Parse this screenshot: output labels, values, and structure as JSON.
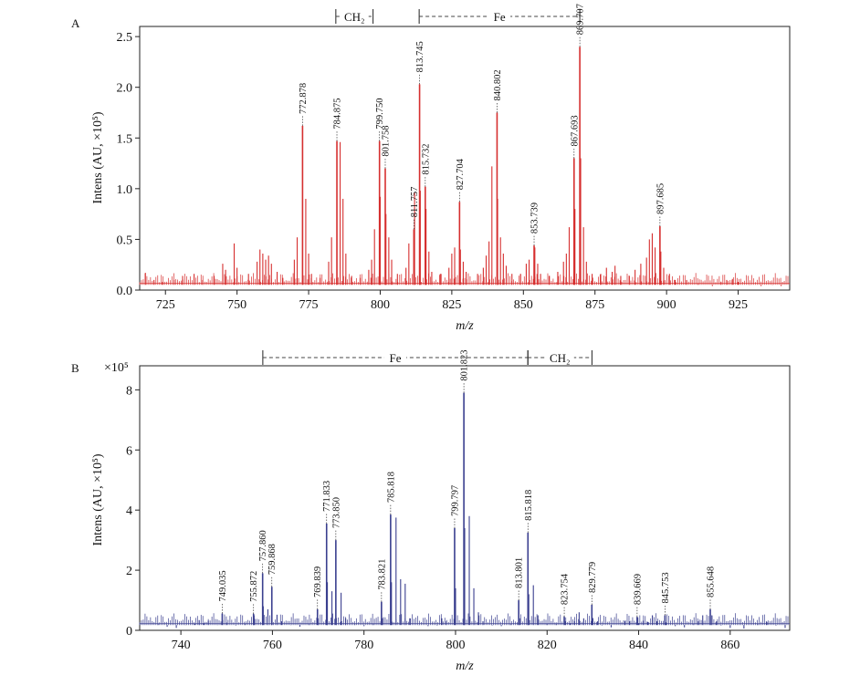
{
  "chart_data": [
    {
      "panel": "A",
      "type": "line",
      "color": "#d62f2f",
      "xlabel": "m/z",
      "ylabel": "Intens (AU, ×10⁵)",
      "xlim": [
        716,
        943
      ],
      "ylim": [
        0,
        2.6
      ],
      "xticks": [
        725,
        750,
        775,
        800,
        825,
        850,
        875,
        900,
        925
      ],
      "yticks": [
        0.0,
        0.5,
        1.0,
        1.5,
        2.0,
        2.5
      ],
      "ytick_labels": [
        "0.0",
        "0.5",
        "1.0",
        "1.5",
        "2.0",
        "2.5"
      ],
      "peaks": [
        {
          "x": 772.878,
          "y": 1.62,
          "label": "772.878"
        },
        {
          "x": 784.875,
          "y": 1.47,
          "label": "784.875"
        },
        {
          "x": 799.75,
          "y": 1.47,
          "label": "799.750"
        },
        {
          "x": 801.758,
          "y": 1.2,
          "label": "801.758"
        },
        {
          "x": 811.757,
          "y": 0.6,
          "label": "811.757"
        },
        {
          "x": 813.745,
          "y": 2.03,
          "label": "813.745"
        },
        {
          "x": 815.732,
          "y": 1.02,
          "label": "815.732"
        },
        {
          "x": 827.704,
          "y": 0.87,
          "label": "827.704"
        },
        {
          "x": 840.802,
          "y": 1.75,
          "label": "840.802"
        },
        {
          "x": 853.739,
          "y": 0.44,
          "label": "853.739"
        },
        {
          "x": 867.693,
          "y": 1.3,
          "label": "867.693"
        },
        {
          "x": 869.707,
          "y": 2.4,
          "label": "869.707"
        },
        {
          "x": 897.685,
          "y": 0.63,
          "label": "897.685"
        }
      ],
      "minor_peaks": [
        [
          718,
          0.17
        ],
        [
          721,
          0.1
        ],
        [
          724,
          0.08
        ],
        [
          728,
          0.1
        ],
        [
          731,
          0.14
        ],
        [
          735,
          0.16
        ],
        [
          738,
          0.1
        ],
        [
          742,
          0.14
        ],
        [
          745,
          0.26
        ],
        [
          746,
          0.2
        ],
        [
          749,
          0.46
        ],
        [
          750,
          0.22
        ],
        [
          754,
          0.16
        ],
        [
          757,
          0.28
        ],
        [
          758,
          0.4
        ],
        [
          759,
          0.36
        ],
        [
          760,
          0.3
        ],
        [
          761,
          0.34
        ],
        [
          762,
          0.26
        ],
        [
          764,
          0.18
        ],
        [
          766,
          0.12
        ],
        [
          770,
          0.3
        ],
        [
          771,
          0.52
        ],
        [
          774,
          0.9
        ],
        [
          775,
          0.36
        ],
        [
          776,
          0.16
        ],
        [
          779,
          0.12
        ],
        [
          782,
          0.28
        ],
        [
          783,
          0.52
        ],
        [
          786,
          1.46
        ],
        [
          787,
          0.9
        ],
        [
          788,
          0.36
        ],
        [
          790,
          0.14
        ],
        [
          793,
          0.12
        ],
        [
          796,
          0.2
        ],
        [
          797,
          0.3
        ],
        [
          798,
          0.6
        ],
        [
          800,
          0.92
        ],
        [
          802,
          0.75
        ],
        [
          803,
          0.52
        ],
        [
          804,
          0.3
        ],
        [
          806,
          0.16
        ],
        [
          809,
          0.22
        ],
        [
          810,
          0.46
        ],
        [
          812,
          0.96
        ],
        [
          814,
          0.98
        ],
        [
          816,
          0.8
        ],
        [
          817,
          0.38
        ],
        [
          818,
          0.18
        ],
        [
          821,
          0.16
        ],
        [
          824,
          0.22
        ],
        [
          825,
          0.36
        ],
        [
          826,
          0.42
        ],
        [
          828,
          0.4
        ],
        [
          829,
          0.28
        ],
        [
          830,
          0.18
        ],
        [
          834,
          0.16
        ],
        [
          836,
          0.22
        ],
        [
          837,
          0.34
        ],
        [
          838,
          0.48
        ],
        [
          839,
          1.22
        ],
        [
          841,
          0.9
        ],
        [
          842,
          0.52
        ],
        [
          843,
          0.36
        ],
        [
          844,
          0.24
        ],
        [
          846,
          0.16
        ],
        [
          849,
          0.16
        ],
        [
          851,
          0.26
        ],
        [
          852,
          0.3
        ],
        [
          854,
          0.42
        ],
        [
          855,
          0.26
        ],
        [
          856,
          0.16
        ],
        [
          859,
          0.14
        ],
        [
          862,
          0.18
        ],
        [
          864,
          0.28
        ],
        [
          865,
          0.36
        ],
        [
          866,
          0.62
        ],
        [
          868,
          0.8
        ],
        [
          870,
          1.3
        ],
        [
          871,
          0.62
        ],
        [
          872,
          0.28
        ],
        [
          874,
          0.16
        ],
        [
          877,
          0.16
        ],
        [
          879,
          0.22
        ],
        [
          881,
          0.18
        ],
        [
          882,
          0.24
        ],
        [
          884,
          0.14
        ],
        [
          887,
          0.14
        ],
        [
          889,
          0.2
        ],
        [
          891,
          0.26
        ],
        [
          893,
          0.32
        ],
        [
          894,
          0.5
        ],
        [
          895,
          0.56
        ],
        [
          896,
          0.42
        ],
        [
          898,
          0.38
        ],
        [
          899,
          0.22
        ],
        [
          901,
          0.16
        ],
        [
          903,
          0.1
        ],
        [
          907,
          0.1
        ],
        [
          911,
          0.06
        ],
        [
          916,
          0.04
        ],
        [
          919,
          0.08
        ],
        [
          921,
          0.1
        ],
        [
          923,
          0.11
        ],
        [
          925,
          0.08
        ],
        [
          929,
          0.05
        ],
        [
          933,
          0.04
        ],
        [
          937,
          0.05
        ],
        [
          940,
          0.04
        ]
      ],
      "annotations": [
        {
          "label": "CH₂",
          "from": 784.5,
          "to": 797.5
        },
        {
          "label": "Fe",
          "from": 813.6,
          "to": 869.7
        }
      ]
    },
    {
      "panel": "B",
      "type": "line",
      "color": "#3a3f8f",
      "xlabel": "m/z",
      "ylabel": "Intens (AU, ×10⁵)",
      "scale_label": "×10⁵",
      "xlim": [
        731,
        873
      ],
      "ylim": [
        0,
        8.8
      ],
      "xticks": [
        740,
        760,
        780,
        800,
        820,
        840,
        860
      ],
      "yticks": [
        0,
        2,
        4,
        6,
        8
      ],
      "ytick_labels": [
        "0",
        "2",
        "4",
        "6",
        "8"
      ],
      "peaks": [
        {
          "x": 749.035,
          "y": 0.56,
          "label": "749.035"
        },
        {
          "x": 755.872,
          "y": 0.55,
          "label": "755.872"
        },
        {
          "x": 757.86,
          "y": 1.9,
          "label": "757.860"
        },
        {
          "x": 759.868,
          "y": 1.45,
          "label": "759.868"
        },
        {
          "x": 769.839,
          "y": 0.7,
          "label": "769.839"
        },
        {
          "x": 771.833,
          "y": 3.55,
          "label": "771.833"
        },
        {
          "x": 773.85,
          "y": 3.0,
          "label": "773.850"
        },
        {
          "x": 783.821,
          "y": 0.95,
          "label": "783.821"
        },
        {
          "x": 785.818,
          "y": 3.85,
          "label": "785.818"
        },
        {
          "x": 799.797,
          "y": 3.4,
          "label": "799.797"
        },
        {
          "x": 801.823,
          "y": 7.9,
          "label": "801.823"
        },
        {
          "x": 813.801,
          "y": 1.0,
          "label": "813.801"
        },
        {
          "x": 815.818,
          "y": 3.25,
          "label": "815.818"
        },
        {
          "x": 823.754,
          "y": 0.45,
          "label": "823.754"
        },
        {
          "x": 829.779,
          "y": 0.85,
          "label": "829.779"
        },
        {
          "x": 839.669,
          "y": 0.45,
          "label": "839.669"
        },
        {
          "x": 845.753,
          "y": 0.5,
          "label": "845.753"
        },
        {
          "x": 855.648,
          "y": 0.7,
          "label": "855.648"
        }
      ],
      "minor_peaks": [
        [
          735,
          0.22
        ],
        [
          737,
          0.12
        ],
        [
          739,
          0.08
        ],
        [
          741,
          0.18
        ],
        [
          743,
          0.22
        ],
        [
          744,
          0.34
        ],
        [
          745,
          0.24
        ],
        [
          746,
          0.32
        ],
        [
          748,
          0.18
        ],
        [
          750,
          0.26
        ],
        [
          752,
          0.16
        ],
        [
          754,
          0.2
        ],
        [
          756,
          0.5
        ],
        [
          758,
          0.8
        ],
        [
          759,
          0.7
        ],
        [
          761,
          0.52
        ],
        [
          762,
          0.3
        ],
        [
          764,
          0.18
        ],
        [
          766,
          0.12
        ],
        [
          768,
          0.2
        ],
        [
          770,
          0.4
        ],
        [
          772,
          1.6
        ],
        [
          773,
          1.3
        ],
        [
          775,
          1.25
        ],
        [
          776,
          0.4
        ],
        [
          778,
          0.2
        ],
        [
          780,
          0.14
        ],
        [
          782,
          0.2
        ],
        [
          784,
          0.4
        ],
        [
          786,
          1.6
        ],
        [
          787,
          3.75
        ],
        [
          788,
          1.7
        ],
        [
          789,
          1.55
        ],
        [
          790,
          0.4
        ],
        [
          792,
          0.18
        ],
        [
          794,
          0.14
        ],
        [
          796,
          0.16
        ],
        [
          797,
          0.4
        ],
        [
          798,
          0.3
        ],
        [
          800,
          1.4
        ],
        [
          802,
          3.4
        ],
        [
          803,
          3.8
        ],
        [
          804,
          1.4
        ],
        [
          805,
          0.6
        ],
        [
          806,
          0.3
        ],
        [
          808,
          0.16
        ],
        [
          810,
          0.14
        ],
        [
          812,
          0.2
        ],
        [
          814,
          0.4
        ],
        [
          816,
          1.2
        ],
        [
          817,
          1.5
        ],
        [
          818,
          0.5
        ],
        [
          820,
          0.2
        ],
        [
          822,
          0.2
        ],
        [
          824,
          0.3
        ],
        [
          825,
          0.24
        ],
        [
          826,
          0.3
        ],
        [
          827,
          0.6
        ],
        [
          828,
          0.4
        ],
        [
          830,
          0.4
        ],
        [
          831,
          0.3
        ],
        [
          832,
          0.16
        ],
        [
          834,
          0.1
        ],
        [
          836,
          0.18
        ],
        [
          837,
          0.3
        ],
        [
          838,
          0.3
        ],
        [
          840,
          0.24
        ],
        [
          841,
          0.32
        ],
        [
          842,
          0.28
        ],
        [
          843,
          0.5
        ],
        [
          844,
          0.3
        ],
        [
          846,
          0.26
        ],
        [
          848,
          0.14
        ],
        [
          850,
          0.1
        ],
        [
          852,
          0.2
        ],
        [
          853,
          0.3
        ],
        [
          854,
          0.5
        ],
        [
          856,
          0.5
        ],
        [
          857,
          0.3
        ],
        [
          858,
          0.16
        ],
        [
          860,
          0.08
        ],
        [
          863,
          0.06
        ],
        [
          866,
          0.2
        ],
        [
          868,
          0.28
        ],
        [
          870,
          0.16
        ],
        [
          872,
          0.08
        ]
      ],
      "annotations": [
        {
          "label": "Fe",
          "from": 757.9,
          "to": 815.8
        },
        {
          "label": "CH₂",
          "from": 815.8,
          "to": 829.8
        }
      ]
    }
  ]
}
